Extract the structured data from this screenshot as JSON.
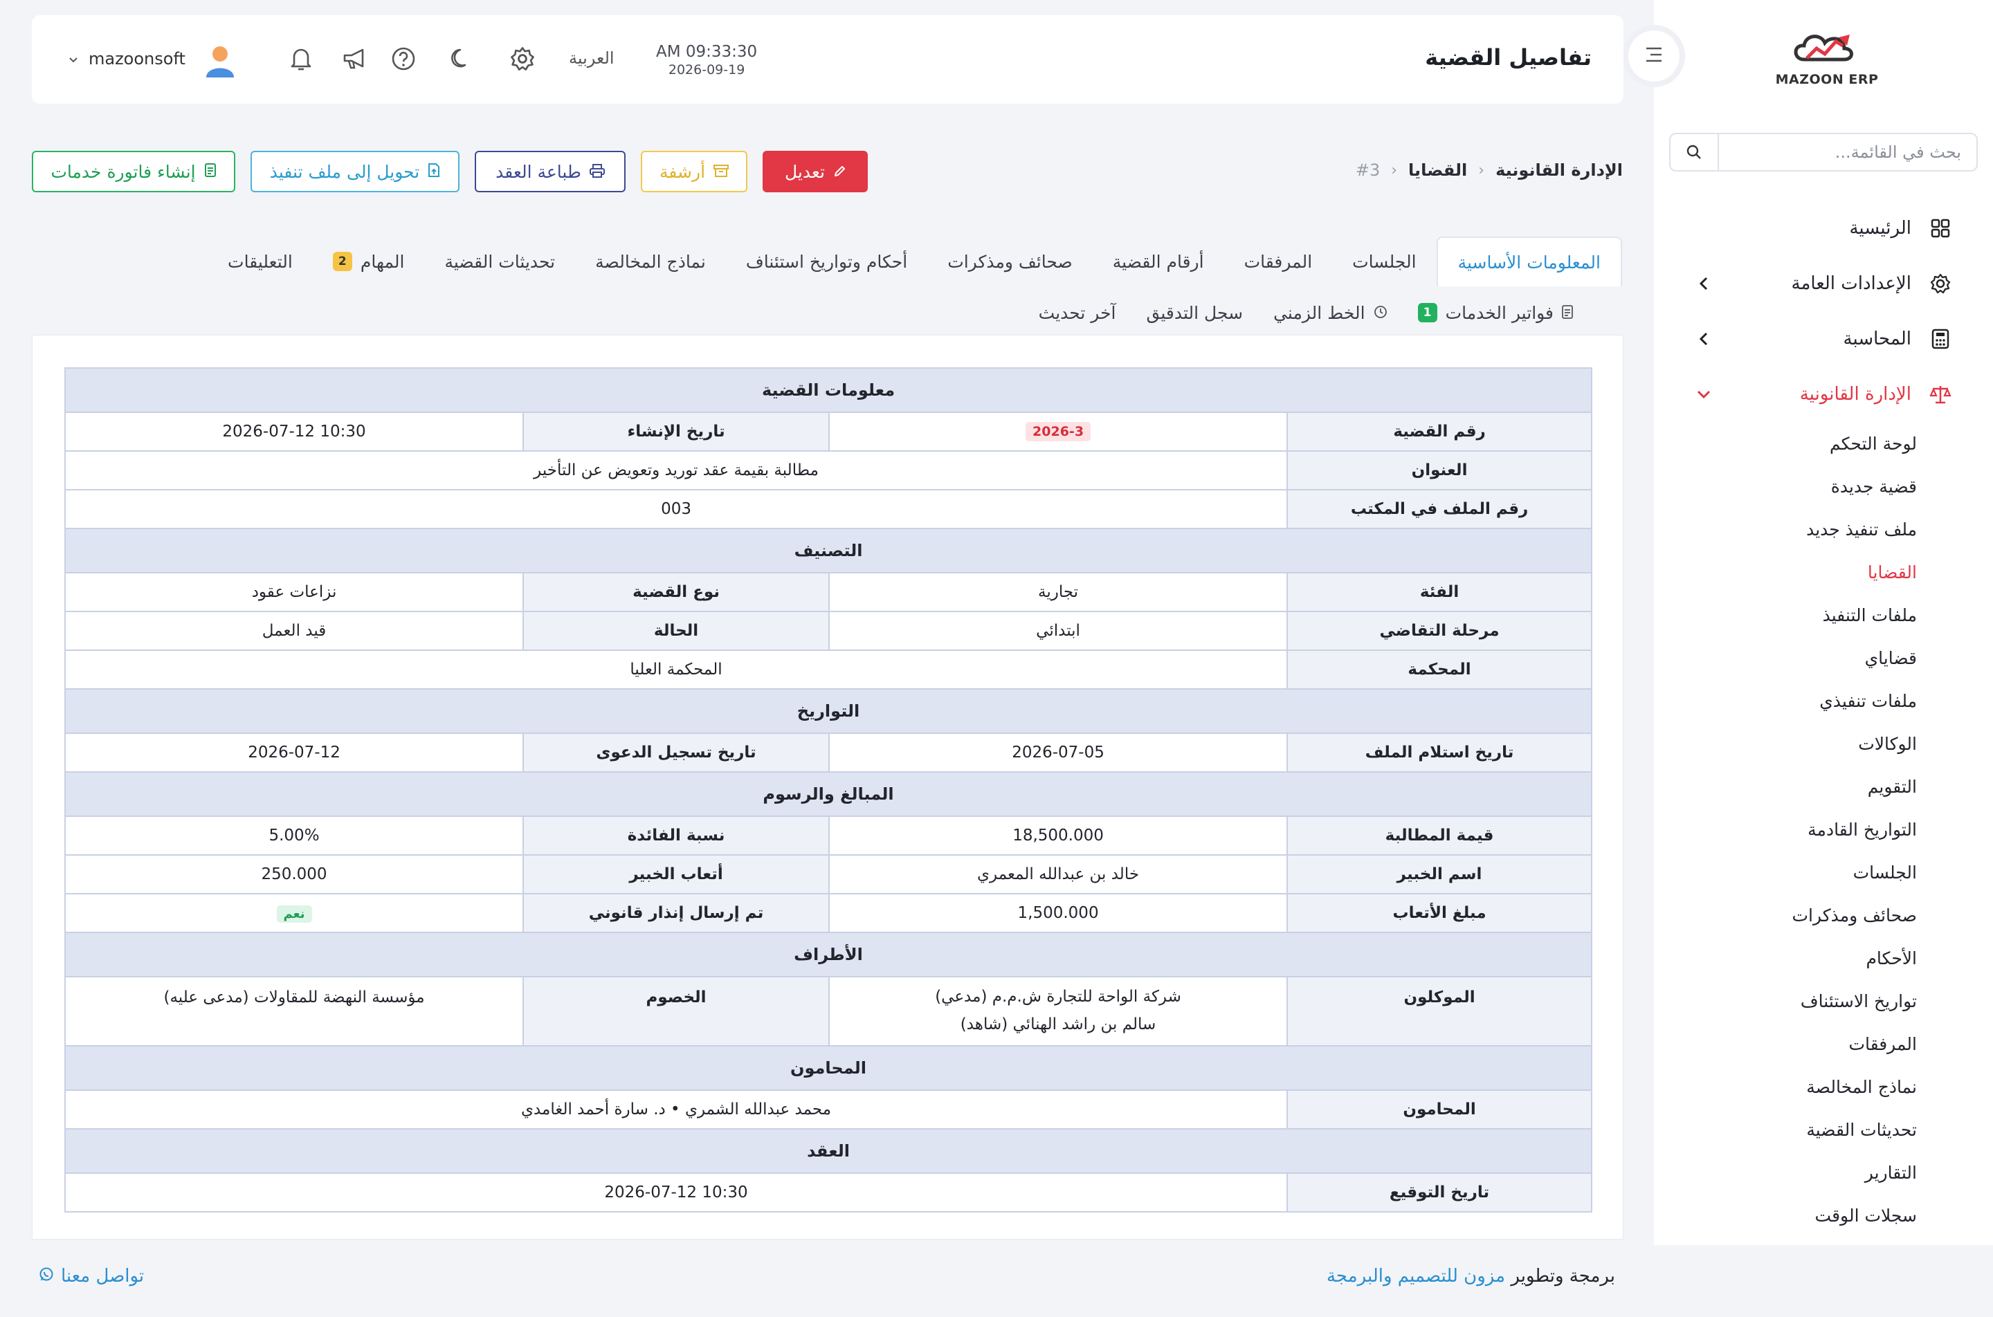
{
  "app": {
    "logo_text": "MAZOON ERP",
    "logo_tag": "ERP ERP"
  },
  "header": {
    "title": "تفاصيل القضية",
    "time": "AM 09:33:30",
    "date": "2026-09-19",
    "language": "العربية",
    "user_name": "mazoonsoft"
  },
  "sidebar": {
    "search_placeholder": "بحث في القائمة...",
    "items": [
      {
        "label": "الرئيسية"
      },
      {
        "label": "الإعدادات العامة"
      },
      {
        "label": "المحاسبة"
      },
      {
        "label": "الإدارة القانونية"
      }
    ],
    "subitems": [
      "لوحة التحكم",
      "قضية جديدة",
      "ملف تنفيذ جديد",
      "القضايا",
      "ملفات التنفيذ",
      "قضاياي",
      "ملفات تنفيذي",
      "الوكالات",
      "التقويم",
      "التواريخ القادمة",
      "الجلسات",
      "صحائف ومذكرات",
      "الأحكام",
      "تواريخ الاستئناف",
      "المرفقات",
      "نماذج المخالصة",
      "تحديثات القضية",
      "التقارير",
      "سجلات الوقت"
    ]
  },
  "breadcrumb": {
    "root": "الإدارة القانونية",
    "section": "القضايا",
    "current": "#3"
  },
  "actions": {
    "edit": "تعديل",
    "archive": "أرشفة",
    "print_contract": "طباعة العقد",
    "convert_execution": "تحويل إلى ملف تنفيذ",
    "create_invoice": "إنشاء فاتورة خدمات"
  },
  "tabs": {
    "row1": [
      {
        "label": "المعلومات الأساسية"
      },
      {
        "label": "الجلسات"
      },
      {
        "label": "المرفقات"
      },
      {
        "label": "أرقام القضية"
      },
      {
        "label": "صحائف ومذكرات"
      },
      {
        "label": "أحكام وتواريخ استئناف"
      },
      {
        "label": "نماذج المخالصة"
      },
      {
        "label": "تحديثات القضية"
      },
      {
        "label": "المهام",
        "badge": "2"
      },
      {
        "label": "التعليقات"
      }
    ],
    "row2": [
      {
        "label": "فواتير الخدمات",
        "badge": "1"
      },
      {
        "label": "الخط الزمني"
      },
      {
        "label": "سجل التدقيق"
      },
      {
        "label": "آخر تحديث"
      }
    ]
  },
  "case": {
    "sections": {
      "info": "معلومات القضية",
      "classification": "التصنيف",
      "dates": "التواريخ",
      "amounts": "المبالغ والرسوم",
      "parties": "الأطراف",
      "lawyers": "المحامون",
      "contract": "العقد"
    },
    "labels": {
      "case_number": "رقم القضية",
      "created_at": "تاريخ الإنشاء",
      "title": "العنوان",
      "office_file": "رقم الملف في المكتب",
      "category": "الفئة",
      "case_type": "نوع القضية",
      "stage": "مرحلة التقاضي",
      "status": "الحالة",
      "court": "المحكمة",
      "file_received": "تاريخ استلام الملف",
      "filing_date": "تاريخ تسجيل الدعوى",
      "claim_value": "قيمة المطالبة",
      "interest_rate": "نسبة الفائدة",
      "expert_name": "اسم الخبير",
      "expert_fees": "أتعاب الخبير",
      "fees_amount": "مبلغ الأتعاب",
      "legal_notice": "تم إرسال إنذار قانوني",
      "clients": "الموكلون",
      "opponents": "الخصوم",
      "lawyers": "المحامون",
      "signing_date": "تاريخ التوقيع"
    },
    "values": {
      "case_number": "2026-3",
      "created_at": "2026-07-12 10:30",
      "title": "مطالبة بقيمة عقد توريد وتعويض عن التأخير",
      "office_file": "003",
      "category": "تجارية",
      "case_type": "نزاعات عقود",
      "stage": "ابتدائي",
      "status": "قيد العمل",
      "court": "المحكمة العليا",
      "file_received": "2026-07-05",
      "filing_date": "2026-07-12",
      "claim_value": "18,500.000",
      "interest_rate": "5.00%",
      "expert_name": "خالد بن عبدالله المعمري",
      "expert_fees": "250.000",
      "fees_amount": "1,500.000",
      "legal_notice": "نعم",
      "clients_line1": "شركة الواحة للتجارة ش.م.م (مدعي)",
      "clients_line2": "سالم بن راشد الهنائي (شاهد)",
      "opponents": "مؤسسة النهضة للمقاولات (مدعى عليه)",
      "lawyers": "محمد عبدالله الشمري • د. سارة أحمد الغامدي",
      "signing_date": "2026-07-12 10:30"
    }
  },
  "footer": {
    "credit_prefix": "برمجة وتطوير",
    "credit_link": "مزون للتصميم والبرمجة",
    "contact": "تواصل معنا"
  },
  "colors": {
    "accent_red": "#e23744",
    "accent_blue": "#2a8fcf",
    "success": "#22b15e",
    "warning": "#f6c445"
  }
}
